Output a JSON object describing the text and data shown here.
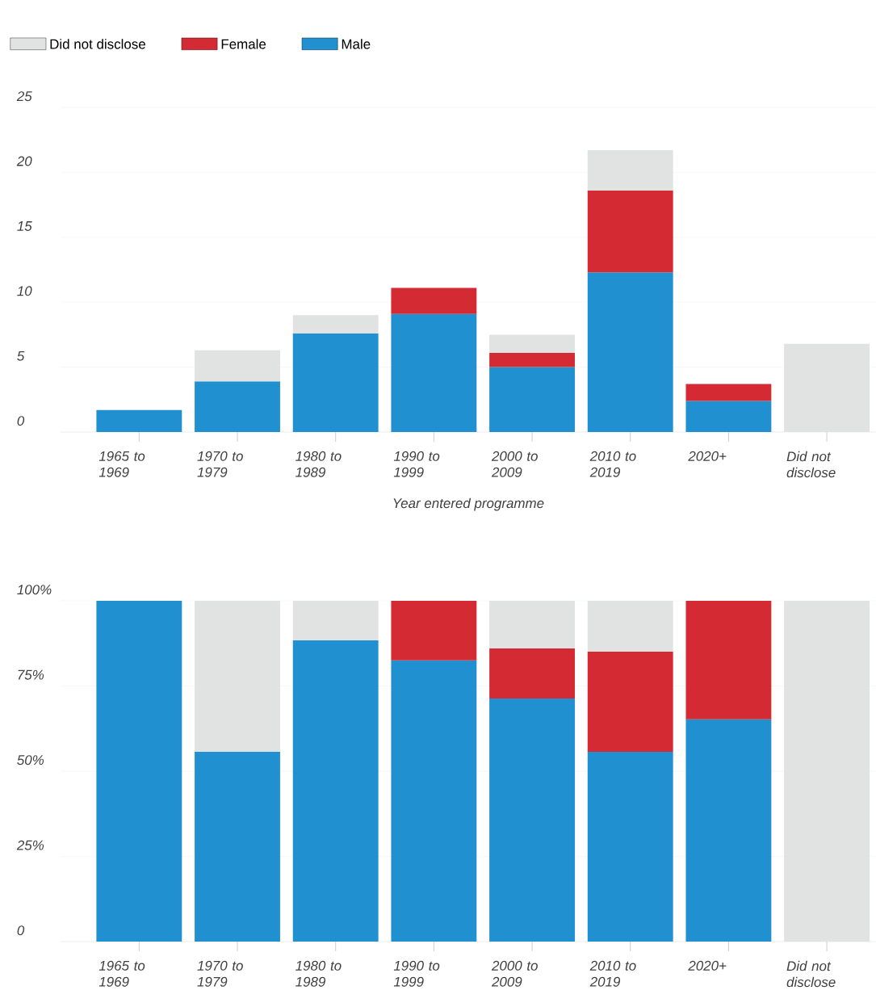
{
  "chart_data": [
    {
      "type": "bar",
      "stacked": true,
      "xlabel": "Year entered programme",
      "categories": [
        "1965 to 1969",
        "1970 to 1979",
        "1980 to 1989",
        "1990 to 1999",
        "2000 to 2009",
        "2010 to 2019",
        "2020+",
        "Did not disclose"
      ],
      "series": [
        {
          "name": "Male",
          "color": "#2190d0",
          "values": [
            1.7,
            3.9,
            7.6,
            9.1,
            5.0,
            12.3,
            2.4,
            null
          ]
        },
        {
          "name": "Female",
          "color": "#d42a33",
          "values": [
            null,
            null,
            null,
            2.0,
            1.1,
            6.3,
            1.3,
            null
          ]
        },
        {
          "name": "Did not disclose",
          "color": "#e0e3e1",
          "values": [
            null,
            2.4,
            1.4,
            null,
            1.4,
            3.1,
            null,
            6.8
          ]
        }
      ],
      "ylim": [
        0,
        25
      ],
      "yticks": [
        0,
        5,
        10,
        15,
        20,
        25
      ],
      "grid": "y",
      "legend": "top left"
    },
    {
      "type": "bar",
      "stacked": true,
      "categories": [
        "1965 to 1969",
        "1970 to 1979",
        "1980 to 1989",
        "1990 to 1999",
        "2000 to 2009",
        "2010 to 2019",
        "2020+",
        "Did not disclose"
      ],
      "series": [
        {
          "color": "#2190d0",
          "values": [
            100,
            55.7,
            88.4,
            82.5,
            71.3,
            55.7,
            65.2,
            null
          ]
        },
        {
          "color": "#d42a33",
          "values": [
            null,
            null,
            null,
            17.5,
            14.7,
            29.4,
            34.8,
            null
          ]
        },
        {
          "color": "#e0e3e1",
          "values": [
            null,
            44.3,
            11.6,
            null,
            14.0,
            14.9,
            null,
            100
          ]
        }
      ],
      "ylim": [
        0,
        100
      ],
      "yticks": [
        0,
        {
          "value": 25,
          "label": "25%"
        },
        {
          "value": 50,
          "label": "50%"
        },
        {
          "value": 75,
          "label": "75%"
        },
        {
          "value": 100,
          "label": "100%"
        }
      ],
      "grid": "y"
    }
  ]
}
